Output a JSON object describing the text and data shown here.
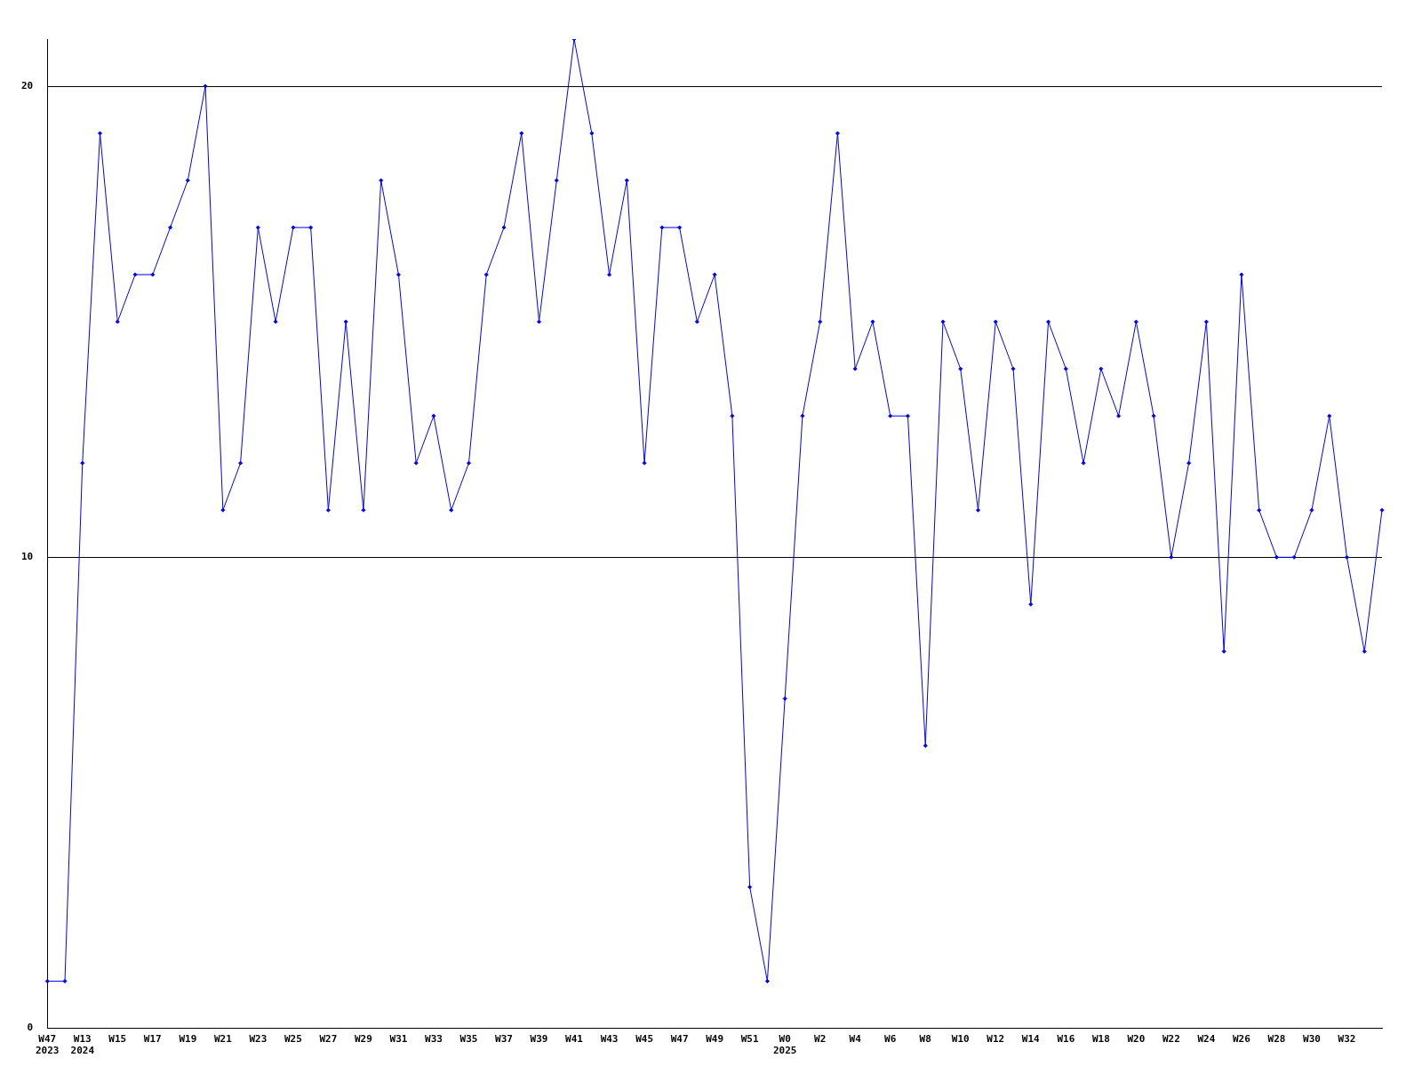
{
  "chart_data": {
    "type": "line",
    "categories": [
      "W47\n2023",
      null,
      "W13\n2024",
      null,
      "W15",
      null,
      "W17",
      null,
      "W19",
      null,
      "W21",
      null,
      "W23",
      null,
      "W25",
      null,
      "W27",
      null,
      "W29",
      null,
      "W31",
      null,
      "W33",
      null,
      "W35",
      null,
      "W37",
      null,
      "W39",
      null,
      "W41",
      null,
      "W43",
      null,
      "W45",
      null,
      "W47",
      null,
      "W49",
      null,
      "W51",
      null,
      "W0\n2025",
      null,
      "W2",
      null,
      "W4",
      null,
      "W6",
      null,
      "W8",
      null,
      "W10",
      null,
      "W12",
      null,
      "W14",
      null,
      "W16",
      null,
      "W18",
      null,
      "W20",
      null,
      "W22",
      null,
      "W24",
      null,
      "W26",
      null,
      "W28",
      null,
      "W30",
      null,
      "W32",
      null,
      null
    ],
    "series": [
      {
        "color": "#0000ff",
        "values": [
          1,
          1,
          12,
          19,
          15,
          16,
          16,
          17,
          18,
          20,
          11,
          12,
          17,
          15,
          17,
          17,
          11,
          15,
          11,
          18,
          16,
          12,
          13,
          11,
          12,
          16,
          17,
          19,
          15,
          18,
          21,
          19,
          16,
          18,
          12,
          17,
          17,
          15,
          16,
          13,
          3,
          1,
          7,
          13,
          15,
          19,
          14,
          15,
          13,
          13,
          6,
          15,
          14,
          11,
          15,
          14,
          9,
          15,
          14,
          12,
          14,
          13,
          15,
          13,
          10,
          12,
          15,
          8,
          16,
          11,
          10,
          10,
          11,
          13,
          10,
          8,
          11
        ]
      }
    ],
    "ylim": [
      0,
      21
    ],
    "yticks": [
      0,
      10,
      20
    ],
    "grid": "y",
    "legend": false,
    "marker": "diamond",
    "line_style": "solid"
  }
}
